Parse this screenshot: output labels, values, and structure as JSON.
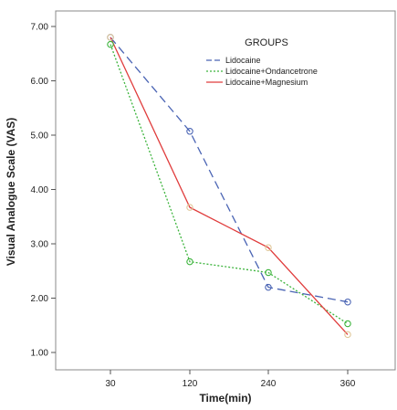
{
  "chart_data": {
    "type": "line",
    "xlabel": "Time(min)",
    "ylabel": "Visual Analogue Scale (VAS)",
    "x": [
      30,
      120,
      240,
      360
    ],
    "x_tick_labels": [
      "30",
      "120",
      "240",
      "360"
    ],
    "ylim": [
      0.8,
      7.2
    ],
    "y_ticks": [
      1.0,
      2.0,
      3.0,
      4.0,
      5.0,
      6.0,
      7.0
    ],
    "y_tick_labels": [
      "1.00",
      "2.00",
      "3.00",
      "4.00",
      "5.00",
      "6.00",
      "7.00"
    ],
    "grid": false,
    "legend": {
      "title": "GROUPS",
      "placement": "top-right"
    },
    "series": [
      {
        "name": "Lidocaine",
        "values": [
          6.8,
          5.07,
          2.2,
          1.93
        ],
        "color": "#4a64b4",
        "dash": "long-dash",
        "marker_color": "#4a64b4"
      },
      {
        "name": "Lidocaine+Ondancetrone",
        "values": [
          6.67,
          2.67,
          2.47,
          1.53
        ],
        "color": "#3cb43c",
        "dash": "dotted",
        "marker_color": "#3cb43c"
      },
      {
        "name": "Lidocaine+Magnesium",
        "values": [
          6.8,
          3.67,
          2.93,
          1.33
        ],
        "color": "#e03c3c",
        "dash": "solid",
        "marker_color": "#e0c89a"
      }
    ]
  }
}
